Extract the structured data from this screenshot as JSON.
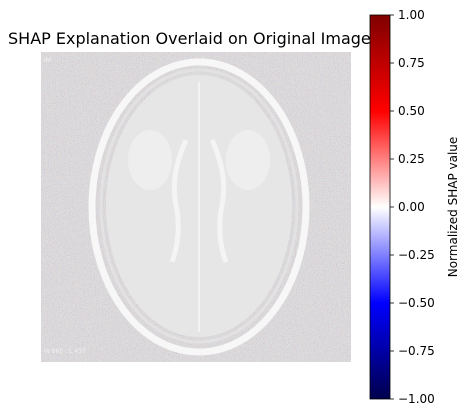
{
  "chart_data": {
    "type": "heatmap",
    "title": "SHAP Explanation Overlaid on Original Image",
    "image_annotations": {
      "corner_label": "IM",
      "window_label": "W 865 : L 437"
    },
    "colorbar": {
      "label": "Normalized SHAP value",
      "colormap": "seismic",
      "vmin": -1.0,
      "vmax": 1.0,
      "ticks": [
        1.0,
        0.75,
        0.5,
        0.25,
        0.0,
        -0.25,
        -0.5,
        -0.75,
        -1.0
      ],
      "tick_labels": [
        "1.00",
        "0.75",
        "0.50",
        "0.25",
        "0.00",
        "−0.25",
        "−0.50",
        "−0.75",
        "−1.00"
      ],
      "colors": {
        "max": "#7f0000",
        "high": "#ff0000",
        "mid": "#ffffff",
        "low": "#0000ff",
        "min": "#00004c"
      }
    }
  }
}
